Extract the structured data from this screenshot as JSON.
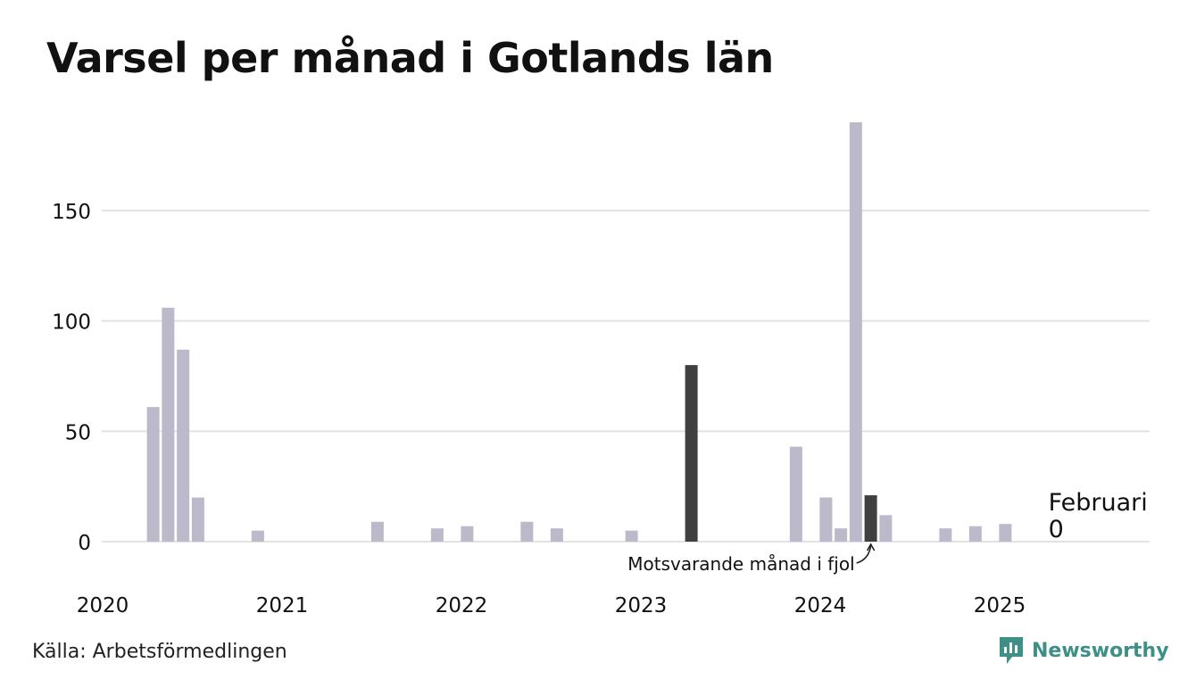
{
  "title": "Varsel per månad i Gotlands län",
  "source": "Källa: Arbetsförmedlingen",
  "brand": "Newsworthy",
  "colors": {
    "bar": "#bcbaca",
    "highlight": "#404040",
    "grid": "#e2e2e2",
    "brand": "#3e8f86"
  },
  "chart_data": {
    "type": "bar",
    "title": "Varsel per månad i Gotlands län",
    "xlabel": "",
    "ylabel": "",
    "ylim": [
      0,
      190
    ],
    "yticks": [
      0,
      50,
      100,
      150
    ],
    "grid": true,
    "x_tick_labels": [
      "2020",
      "2021",
      "2022",
      "2023",
      "2024",
      "2025"
    ],
    "series": [
      {
        "values": [
          {
            "x": "2020-02",
            "y": 61
          },
          {
            "x": "2020-03",
            "y": 106
          },
          {
            "x": "2020-04",
            "y": 87
          },
          {
            "x": "2020-05",
            "y": 20
          },
          {
            "x": "2020-09",
            "y": 5
          },
          {
            "x": "2021-05",
            "y": 9
          },
          {
            "x": "2021-09",
            "y": 6
          },
          {
            "x": "2021-11",
            "y": 7
          },
          {
            "x": "2022-03",
            "y": 9
          },
          {
            "x": "2022-05",
            "y": 6
          },
          {
            "x": "2022-10",
            "y": 5
          },
          {
            "x": "2023-02",
            "y": 80
          },
          {
            "x": "2023-09",
            "y": 43
          },
          {
            "x": "2023-11",
            "y": 20
          },
          {
            "x": "2023-12",
            "y": 6
          },
          {
            "x": "2024-01",
            "y": 190
          },
          {
            "x": "2024-02",
            "y": 21
          },
          {
            "x": "2024-03",
            "y": 12
          },
          {
            "x": "2024-07",
            "y": 6
          },
          {
            "x": "2024-09",
            "y": 7
          },
          {
            "x": "2024-11",
            "y": 8
          },
          {
            "x": "2025-02",
            "y": 0
          }
        ]
      }
    ],
    "highlighted": [
      "2023-02",
      "2024-02"
    ],
    "annotations": [
      {
        "text": "Motsvarande månad i fjol",
        "target": "2024-02"
      },
      {
        "text": "Februari",
        "value": "0",
        "target": "2025-02"
      }
    ]
  }
}
